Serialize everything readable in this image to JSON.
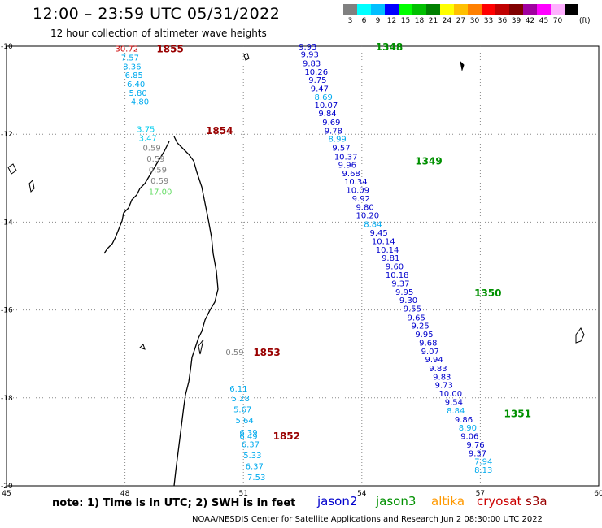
{
  "title": "12:00 – 23:59 UTC 05/31/2022",
  "subtitle": "12 hour collection of altimeter wave heights",
  "legend": {
    "unit": "(ft)",
    "items": [
      {
        "label": "3",
        "color": "#808080"
      },
      {
        "label": "6",
        "color": "#00ffff"
      },
      {
        "label": "9",
        "color": "#00bfff"
      },
      {
        "label": "12",
        "color": "#0000ff"
      },
      {
        "label": "15",
        "color": "#00ff00"
      },
      {
        "label": "18",
        "color": "#00c000"
      },
      {
        "label": "21",
        "color": "#008000"
      },
      {
        "label": "24",
        "color": "#ffff00"
      },
      {
        "label": "27",
        "color": "#ffc000"
      },
      {
        "label": "30",
        "color": "#ff8000"
      },
      {
        "label": "33",
        "color": "#ff0000"
      },
      {
        "label": "36",
        "color": "#c00000"
      },
      {
        "label": "39",
        "color": "#800000"
      },
      {
        "label": "42",
        "color": "#a000a0"
      },
      {
        "label": "45",
        "color": "#ff00ff"
      },
      {
        "label": "70",
        "color": "#ffb0ff"
      },
      {
        "label": "",
        "color": "#000000"
      }
    ]
  },
  "axes": {
    "lat_ticks": [
      "-10",
      "-12",
      "-14",
      "-16",
      "-18",
      "-20"
    ],
    "lon_ticks": [
      "45",
      "48",
      "51",
      "54",
      "57",
      "60"
    ],
    "lon_range": [
      45,
      60
    ],
    "lat_range": [
      -20,
      -10
    ]
  },
  "note": "note: 1) Time is in UTC; 2) SWH is in feet",
  "satellites": [
    {
      "name": "jason2",
      "color": "#0000cc"
    },
    {
      "name": "jason3",
      "color": "#009000"
    },
    {
      "name": "altika",
      "color": "#ff9900"
    },
    {
      "name": "cryosat",
      "color": "#cc0000"
    },
    {
      "name": "s3a",
      "color": "#990000"
    }
  ],
  "credit": "NOAA/NESDIS Center for Satellite Applications and Research   Jun  2 08:30:00 UTC 2022",
  "pass_labels": [
    {
      "text": "1348",
      "lon": 54.35,
      "lat": -10.0,
      "color": "#009000"
    },
    {
      "text": "1349",
      "lon": 55.35,
      "lat": -12.6,
      "color": "#009000"
    },
    {
      "text": "1350",
      "lon": 56.85,
      "lat": -15.6,
      "color": "#009000"
    },
    {
      "text": "1351",
      "lon": 57.6,
      "lat": -18.35,
      "color": "#009000"
    },
    {
      "text": "1855",
      "lon": 48.8,
      "lat": -10.05,
      "color": "#990000"
    },
    {
      "text": "1854",
      "lon": 50.05,
      "lat": -11.9,
      "color": "#990000"
    },
    {
      "text": "1853",
      "lon": 51.25,
      "lat": -16.95,
      "color": "#990000"
    },
    {
      "text": "1852",
      "lon": 51.75,
      "lat": -18.85,
      "color": "#990000"
    }
  ],
  "tracks": [
    {
      "name": "jason3-east-track",
      "color_override": null,
      "points": [
        {
          "value": "9.93",
          "lon": 52.4,
          "lat": -10.0,
          "color": "#0000cc"
        },
        {
          "value": "9.93",
          "lon": 52.45,
          "lat": -10.18,
          "color": "#0000cc"
        },
        {
          "value": "9.83",
          "lon": 52.5,
          "lat": -10.38,
          "color": "#0000cc"
        },
        {
          "value": "10.26",
          "lon": 52.55,
          "lat": -10.57,
          "color": "#0000cc"
        },
        {
          "value": "9.75",
          "lon": 52.65,
          "lat": -10.76,
          "color": "#0000cc"
        },
        {
          "value": "9.47",
          "lon": 52.7,
          "lat": -10.95,
          "color": "#0000cc"
        },
        {
          "value": "8.69",
          "lon": 52.8,
          "lat": -11.15,
          "color": "#00aaee"
        },
        {
          "value": "10.07",
          "lon": 52.8,
          "lat": -11.33,
          "color": "#0000cc"
        },
        {
          "value": "9.84",
          "lon": 52.9,
          "lat": -11.52,
          "color": "#0000cc"
        },
        {
          "value": "9.69",
          "lon": 53.0,
          "lat": -11.72,
          "color": "#0000cc"
        },
        {
          "value": "9.78",
          "lon": 53.05,
          "lat": -11.91,
          "color": "#0000cc"
        },
        {
          "value": "8.99",
          "lon": 53.15,
          "lat": -12.1,
          "color": "#00aaee"
        },
        {
          "value": "9.57",
          "lon": 53.25,
          "lat": -12.3,
          "color": "#0000cc"
        },
        {
          "value": "10.37",
          "lon": 53.3,
          "lat": -12.5,
          "color": "#0000cc"
        },
        {
          "value": "9.96",
          "lon": 53.4,
          "lat": -12.69,
          "color": "#0000cc"
        },
        {
          "value": "9.68",
          "lon": 53.5,
          "lat": -12.88,
          "color": "#0000cc"
        },
        {
          "value": "10.34",
          "lon": 53.55,
          "lat": -13.07,
          "color": "#0000cc"
        },
        {
          "value": "10.09",
          "lon": 53.6,
          "lat": -13.26,
          "color": "#0000cc"
        },
        {
          "value": "9.92",
          "lon": 53.75,
          "lat": -13.46,
          "color": "#0000cc"
        },
        {
          "value": "9.80",
          "lon": 53.85,
          "lat": -13.65,
          "color": "#0000cc"
        },
        {
          "value": "10.20",
          "lon": 53.85,
          "lat": -13.84,
          "color": "#0000cc"
        },
        {
          "value": "8.84",
          "lon": 54.05,
          "lat": -14.04,
          "color": "#00aaee"
        },
        {
          "value": "9.45",
          "lon": 54.2,
          "lat": -14.23,
          "color": "#0000cc"
        },
        {
          "value": "10.14",
          "lon": 54.25,
          "lat": -14.43,
          "color": "#0000cc"
        },
        {
          "value": "10.14",
          "lon": 54.35,
          "lat": -14.62,
          "color": "#0000cc"
        },
        {
          "value": "9.81",
          "lon": 54.5,
          "lat": -14.81,
          "color": "#0000cc"
        },
        {
          "value": "9.60",
          "lon": 54.6,
          "lat": -15.0,
          "color": "#0000cc"
        },
        {
          "value": "10.18",
          "lon": 54.6,
          "lat": -15.19,
          "color": "#0000cc"
        },
        {
          "value": "9.37",
          "lon": 54.75,
          "lat": -15.39,
          "color": "#0000cc"
        },
        {
          "value": "9.95",
          "lon": 54.85,
          "lat": -15.58,
          "color": "#0000cc"
        },
        {
          "value": "9.30",
          "lon": 54.95,
          "lat": -15.77,
          "color": "#0000cc"
        },
        {
          "value": "9.55",
          "lon": 55.05,
          "lat": -15.96,
          "color": "#0000cc"
        },
        {
          "value": "9.65",
          "lon": 55.15,
          "lat": -16.16,
          "color": "#0000cc"
        },
        {
          "value": "9.25",
          "lon": 55.25,
          "lat": -16.35,
          "color": "#0000cc"
        },
        {
          "value": "9.95",
          "lon": 55.35,
          "lat": -16.54,
          "color": "#0000cc"
        },
        {
          "value": "9.68",
          "lon": 55.45,
          "lat": -16.74,
          "color": "#0000cc"
        },
        {
          "value": "9.07",
          "lon": 55.5,
          "lat": -16.93,
          "color": "#0000cc"
        },
        {
          "value": "9.94",
          "lon": 55.6,
          "lat": -17.12,
          "color": "#0000cc"
        },
        {
          "value": "9.83",
          "lon": 55.7,
          "lat": -17.32,
          "color": "#0000cc"
        },
        {
          "value": "9.83",
          "lon": 55.8,
          "lat": -17.51,
          "color": "#0000cc"
        },
        {
          "value": "9.73",
          "lon": 55.85,
          "lat": -17.7,
          "color": "#0000cc"
        },
        {
          "value": "10.00",
          "lon": 55.95,
          "lat": -17.89,
          "color": "#0000cc"
        },
        {
          "value": "9.54",
          "lon": 56.1,
          "lat": -18.09,
          "color": "#0000cc"
        },
        {
          "value": "8.84",
          "lon": 56.15,
          "lat": -18.28,
          "color": "#00aaee"
        },
        {
          "value": "9.86",
          "lon": 56.35,
          "lat": -18.48,
          "color": "#0000cc"
        },
        {
          "value": "8.90",
          "lon": 56.45,
          "lat": -18.67,
          "color": "#00aaee"
        },
        {
          "value": "9.06",
          "lon": 56.5,
          "lat": -18.86,
          "color": "#0000cc"
        },
        {
          "value": "9.76",
          "lon": 56.65,
          "lat": -19.06,
          "color": "#0000cc"
        },
        {
          "value": "9.37",
          "lon": 56.7,
          "lat": -19.25,
          "color": "#0000cc"
        },
        {
          "value": "7.94",
          "lon": 56.85,
          "lat": -19.44,
          "color": "#00aaee"
        },
        {
          "value": "8.13",
          "lon": 56.85,
          "lat": -19.63,
          "color": "#00aaee"
        }
      ]
    },
    {
      "name": "s3a-north-track",
      "points": [
        {
          "value": "30.72",
          "lon": 47.75,
          "lat": -10.05,
          "color": "#cc0000"
        },
        {
          "value": "7.57",
          "lon": 47.9,
          "lat": -10.25,
          "color": "#00aaee"
        },
        {
          "value": "8.36",
          "lon": 47.95,
          "lat": -10.45,
          "color": "#00aaee"
        },
        {
          "value": "6.85",
          "lon": 48.0,
          "lat": -10.65,
          "color": "#00aaee"
        },
        {
          "value": "6.40",
          "lon": 48.05,
          "lat": -10.85,
          "color": "#00aaee"
        },
        {
          "value": "5.80",
          "lon": 48.1,
          "lat": -11.05,
          "color": "#00aaee"
        },
        {
          "value": "4.80",
          "lon": 48.15,
          "lat": -11.25,
          "color": "#00aaee"
        },
        {
          "value": "3.75",
          "lon": 48.3,
          "lat": -11.88,
          "color": "#00ccee"
        },
        {
          "value": "3.47",
          "lon": 48.35,
          "lat": -12.08,
          "color": "#00ccee"
        },
        {
          "value": "0.59",
          "lon": 48.45,
          "lat": -12.3,
          "color": "#808080"
        },
        {
          "value": "0.59",
          "lon": 48.55,
          "lat": -12.55,
          "color": "#808080"
        },
        {
          "value": "0.59",
          "lon": 48.6,
          "lat": -12.8,
          "color": "#808080"
        },
        {
          "value": "0.59",
          "lon": 48.65,
          "lat": -13.05,
          "color": "#808080"
        },
        {
          "value": "17.00",
          "lon": 48.6,
          "lat": -13.3,
          "color": "#66dd66"
        }
      ]
    },
    {
      "name": "s3a-south-track",
      "points": [
        {
          "value": "0.59",
          "lon": 50.55,
          "lat": -16.95,
          "color": "#808080"
        },
        {
          "value": "6.11",
          "lon": 50.65,
          "lat": -17.78,
          "color": "#00aaee"
        },
        {
          "value": "5.28",
          "lon": 50.7,
          "lat": -18.0,
          "color": "#00aaee"
        },
        {
          "value": "5.67",
          "lon": 50.75,
          "lat": -18.25,
          "color": "#00aaee"
        },
        {
          "value": "5.64",
          "lon": 50.8,
          "lat": -18.5,
          "color": "#00aaee"
        },
        {
          "value": "6.39",
          "lon": 50.9,
          "lat": -18.78,
          "color": "#00aaee"
        },
        {
          "value": "6.49",
          "lon": 50.9,
          "lat": -18.86,
          "color": "#00aaee"
        },
        {
          "value": "6.37",
          "lon": 50.95,
          "lat": -19.05,
          "color": "#00aaee"
        },
        {
          "value": "5.33",
          "lon": 51.0,
          "lat": -19.3,
          "color": "#00aaee"
        },
        {
          "value": "6.37",
          "lon": 51.05,
          "lat": -19.55,
          "color": "#00aaee"
        },
        {
          "value": "7.53",
          "lon": 51.1,
          "lat": -19.8,
          "color": "#00aaee"
        }
      ]
    }
  ]
}
